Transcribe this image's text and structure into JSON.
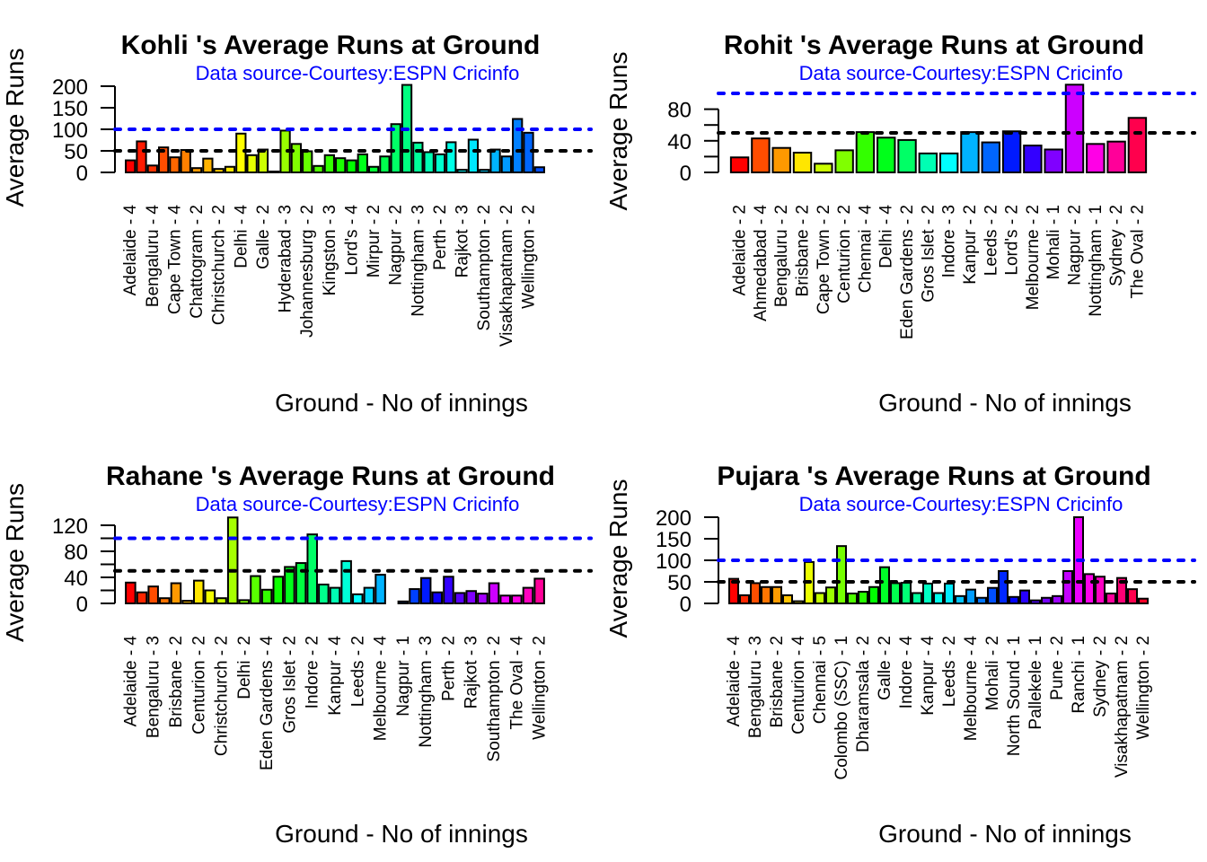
{
  "chart_data": [
    {
      "type": "bar",
      "title": "Kohli 's Average Runs at Ground",
      "subtitle": "Data source-Courtesy:ESPN Cricinfo",
      "xlabel": "Ground - No of innings",
      "ylabel": "Average Runs",
      "ylim": [
        0,
        200
      ],
      "yticks": [
        0,
        50,
        100,
        150,
        200
      ],
      "reference_lines": [
        {
          "value": 100,
          "color": "#0000ff"
        },
        {
          "value": 50,
          "color": "#000000"
        }
      ],
      "categories": [
        "Adelaide - 4",
        "",
        "Bengaluru - 4",
        "",
        "Cape Town - 4",
        "",
        "Chattogram - 2",
        "",
        "Christchurch - 2",
        "",
        "Delhi - 4",
        "",
        "Galle - 2",
        "",
        "Hyderabad - 3",
        "",
        "Johannesburg - 2",
        "",
        "Kingston - 3",
        "",
        "Lord's - 4",
        "",
        "Mirpur - 2",
        "",
        "Nagpur - 2",
        "",
        "Nottingham - 3",
        "",
        "Perth - 2",
        "",
        "Rajkot - 3",
        "",
        "Southampton - 2",
        "",
        "Visakhapatnam - 2",
        "",
        "Wellington - 2"
      ],
      "values": [
        28,
        72,
        16,
        58,
        35,
        52,
        10,
        32,
        8,
        13,
        90,
        40,
        53,
        2,
        97,
        66,
        49,
        15,
        40,
        33,
        28,
        42,
        13,
        37,
        112,
        203,
        69,
        47,
        42,
        70,
        6,
        76,
        6,
        53,
        37,
        124,
        92,
        12
      ],
      "colors": [
        "#FF0000",
        "#FF1A00",
        "#FF3300",
        "#FF4D00",
        "#FF6600",
        "#FF8000",
        "#FF9900",
        "#FFB300",
        "#FFCC00",
        "#FFE600",
        "#FFFF00",
        "#E6FF00",
        "#CCFF00",
        "#B3FF00",
        "#99FF00",
        "#80FF00",
        "#66FF00",
        "#4DFF00",
        "#33FF00",
        "#1AFF00",
        "#00FF00",
        "#00FF1A",
        "#00FF33",
        "#00FF4D",
        "#00FF66",
        "#00FF80",
        "#00FF99",
        "#00FFB3",
        "#00FFCC",
        "#00FFE6",
        "#00FFFF",
        "#00E6FF",
        "#00CCFF",
        "#00B3FF",
        "#0099FF",
        "#0080FF",
        "#0066FF",
        "#004DFF"
      ]
    },
    {
      "type": "bar",
      "title": "Rohit 's Average Runs at Ground",
      "subtitle": "Data source-Courtesy:ESPN Cricinfo",
      "xlabel": "Ground - No of innings",
      "ylabel": "Average Runs",
      "ylim": [
        0,
        100
      ],
      "yticks": [
        0,
        20,
        40,
        60,
        80
      ],
      "ytick_labels": [
        "0",
        "",
        "40",
        "",
        "80"
      ],
      "reference_lines": [
        {
          "value": 100,
          "color": "#0000ff"
        },
        {
          "value": 50,
          "color": "#000000"
        }
      ],
      "categories": [
        "Adelaide - 2",
        "Ahmedabad - 4",
        "Bengaluru - 2",
        "Brisbane - 2",
        "Cape Town - 2",
        "Centurion - 2",
        "Chennai - 4",
        "Delhi - 4",
        "Eden Gardens - 2",
        "Gros Islet - 2",
        "Indore - 3",
        "Kanpur - 2",
        "Leeds - 2",
        "Lord's - 2",
        "Melbourne - 2",
        "Mohali - 1",
        "Nagpur - 2",
        "Nottingham - 1",
        "Sydney - 2",
        "The Oval - 2"
      ],
      "values": [
        19,
        43,
        31,
        25,
        11,
        28,
        51,
        44,
        41,
        24,
        24,
        51,
        38,
        52,
        34,
        29,
        111,
        36,
        39,
        69
      ],
      "colors": [
        "#FF0000",
        "#FF4D00",
        "#FF9900",
        "#FFE600",
        "#CCFF00",
        "#80FF00",
        "#33FF00",
        "#00FF1A",
        "#00FF66",
        "#00FFB3",
        "#00FFFF",
        "#00B3FF",
        "#0066FF",
        "#001AFF",
        "#3300FF",
        "#8000FF",
        "#CC00FF",
        "#FF00E6",
        "#FF0099",
        "#FF004D"
      ]
    },
    {
      "type": "bar",
      "title": "Rahane 's Average Runs at Ground",
      "subtitle": "Data source-Courtesy:ESPN Cricinfo",
      "xlabel": "Ground - No of innings",
      "ylabel": "Average Runs",
      "ylim": [
        0,
        120
      ],
      "yticks": [
        0,
        20,
        40,
        60,
        80,
        100,
        120
      ],
      "ytick_labels": [
        "0",
        "",
        "40",
        "",
        "80",
        "",
        "120"
      ],
      "reference_lines": [
        {
          "value": 100,
          "color": "#0000ff"
        },
        {
          "value": 50,
          "color": "#000000"
        }
      ],
      "categories": [
        "Adelaide - 4",
        "",
        "Bengaluru - 3",
        "",
        "Brisbane - 2",
        "",
        "Centurion - 2",
        "",
        "Christchurch - 2",
        "",
        "Delhi - 2",
        "",
        "Eden Gardens - 4",
        "",
        "Gros Islet - 2",
        "",
        "Indore - 2",
        "",
        "Kanpur - 4",
        "",
        "Leeds - 2",
        "",
        "Melbourne - 4",
        "",
        "Nagpur - 1",
        "",
        "Nottingham - 3",
        "",
        "Perth - 2",
        "",
        "Rajkot - 3",
        "",
        "Southampton - 2",
        "",
        "The Oval - 4",
        "",
        "Wellington - 2"
      ],
      "values": [
        32,
        17,
        26,
        8,
        31,
        4,
        35,
        20,
        8,
        132,
        5,
        42,
        21,
        41,
        56,
        62,
        106,
        29,
        24,
        65,
        14,
        24,
        44,
        0,
        3,
        22,
        39,
        17,
        41,
        16,
        19,
        15,
        31,
        12,
        12,
        24,
        38
      ],
      "colors": [
        "#FF0000",
        "#FF2600",
        "#FF4D00",
        "#FF7300",
        "#FF9900",
        "#FFBF00",
        "#FFE600",
        "#F2FF00",
        "#CCFF00",
        "#A6FF00",
        "#80FF00",
        "#59FF00",
        "#33FF00",
        "#0DFF00",
        "#00FF1A",
        "#00FF40",
        "#00FF66",
        "#00FF8C",
        "#00FFB3",
        "#00FFD9",
        "#00FFFF",
        "#00D9FF",
        "#00B3FF",
        "#008CFF",
        "#0066FF",
        "#0040FF",
        "#001AFF",
        "#0D00FF",
        "#3300FF",
        "#5900FF",
        "#8000FF",
        "#A600FF",
        "#CC00FF",
        "#F200FF",
        "#FF00E6",
        "#FF00BF",
        "#FF0099",
        "#FF0073",
        "#FF004D",
        "#FF0026"
      ]
    },
    {
      "type": "bar",
      "title": "Pujara 's Average Runs at Ground",
      "subtitle": "Data source-Courtesy:ESPN Cricinfo",
      "xlabel": "Ground - No of innings",
      "ylabel": "Average Runs",
      "ylim": [
        0,
        200
      ],
      "yticks": [
        0,
        50,
        100,
        150,
        200
      ],
      "reference_lines": [
        {
          "value": 100,
          "color": "#0000ff"
        },
        {
          "value": 50,
          "color": "#000000"
        }
      ],
      "categories": [
        "Adelaide - 4",
        "",
        "Bengaluru - 3",
        "",
        "Brisbane - 2",
        "",
        "Centurion - 4",
        "",
        "Chennai - 5",
        "",
        "Colombo (SSC) - 1",
        "",
        "Dharamsala - 2",
        "",
        "Galle - 2",
        "",
        "Indore - 4",
        "",
        "Kanpur - 4",
        "",
        "Leeds - 2",
        "",
        "Melbourne - 4",
        "",
        "Mohali - 2",
        "",
        "North Sound - 1",
        "",
        "Pallekele - 1",
        "",
        "Pune - 2",
        "",
        "Ranchi - 1",
        "",
        "Sydney - 2",
        "",
        "Visakhapatnam - 2",
        "",
        "Wellington - 2"
      ],
      "values": [
        57,
        19,
        47,
        38,
        38,
        19,
        5,
        96,
        24,
        37,
        133,
        23,
        27,
        38,
        84,
        47,
        48,
        24,
        46,
        24,
        46,
        17,
        32,
        13,
        36,
        75,
        15,
        30,
        7,
        13,
        17,
        75,
        200,
        68,
        62,
        23,
        59,
        33,
        11
      ],
      "colors": [
        "#FF0000",
        "#FF2700",
        "#FF4E00",
        "#FF7500",
        "#FF9C00",
        "#FFC300",
        "#FFEB00",
        "#EBFF00",
        "#C3FF00",
        "#9CFF00",
        "#75FF00",
        "#4EFF00",
        "#27FF00",
        "#00FF00",
        "#00FF27",
        "#00FF4E",
        "#00FF75",
        "#00FF9C",
        "#00FFC3",
        "#00FFEB",
        "#00EBFF",
        "#00C3FF",
        "#009CFF",
        "#0075FF",
        "#004EFF",
        "#0027FF",
        "#0000FF",
        "#2700FF",
        "#4E00FF",
        "#7500FF",
        "#9C00FF",
        "#C300FF",
        "#EB00FF",
        "#FF00EB",
        "#FF00C3",
        "#FF009C",
        "#FF0075",
        "#FF004E",
        "#FF0027"
      ]
    }
  ]
}
